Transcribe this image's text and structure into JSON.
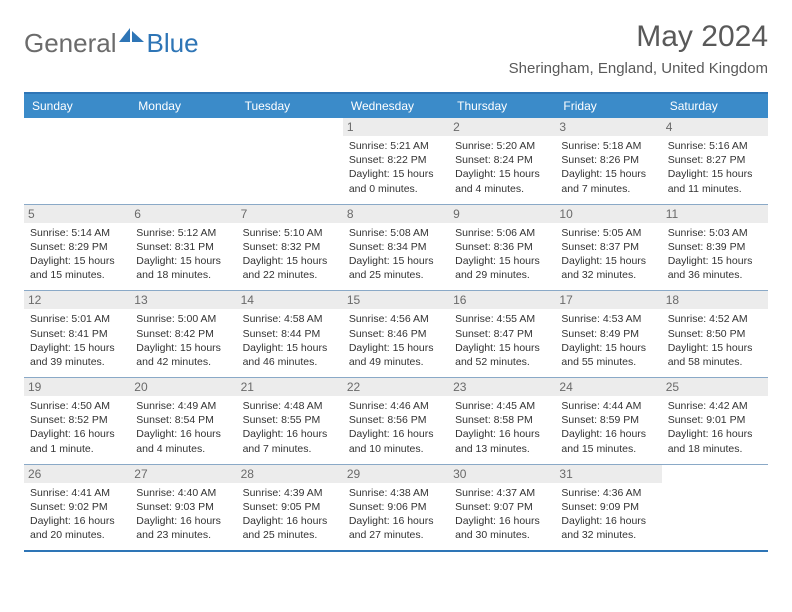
{
  "brand": {
    "word1": "General",
    "word2": "Blue"
  },
  "colors": {
    "accent": "#2e75b6",
    "header_bg": "#3b8bc9",
    "header_text": "#ffffff",
    "daynum_bg": "#ececec",
    "daynum_text": "#6a6a6a",
    "title_text": "#595959",
    "body_text": "#333333",
    "rule": "#8aa9c7"
  },
  "title": "May 2024",
  "location": "Sheringham, England, United Kingdom",
  "day_headers": [
    "Sunday",
    "Monday",
    "Tuesday",
    "Wednesday",
    "Thursday",
    "Friday",
    "Saturday"
  ],
  "weeks": [
    [
      {
        "n": "",
        "sr": "",
        "ss": "",
        "dl": ""
      },
      {
        "n": "",
        "sr": "",
        "ss": "",
        "dl": ""
      },
      {
        "n": "",
        "sr": "",
        "ss": "",
        "dl": ""
      },
      {
        "n": "1",
        "sr": "Sunrise: 5:21 AM",
        "ss": "Sunset: 8:22 PM",
        "dl": "Daylight: 15 hours and 0 minutes."
      },
      {
        "n": "2",
        "sr": "Sunrise: 5:20 AM",
        "ss": "Sunset: 8:24 PM",
        "dl": "Daylight: 15 hours and 4 minutes."
      },
      {
        "n": "3",
        "sr": "Sunrise: 5:18 AM",
        "ss": "Sunset: 8:26 PM",
        "dl": "Daylight: 15 hours and 7 minutes."
      },
      {
        "n": "4",
        "sr": "Sunrise: 5:16 AM",
        "ss": "Sunset: 8:27 PM",
        "dl": "Daylight: 15 hours and 11 minutes."
      }
    ],
    [
      {
        "n": "5",
        "sr": "Sunrise: 5:14 AM",
        "ss": "Sunset: 8:29 PM",
        "dl": "Daylight: 15 hours and 15 minutes."
      },
      {
        "n": "6",
        "sr": "Sunrise: 5:12 AM",
        "ss": "Sunset: 8:31 PM",
        "dl": "Daylight: 15 hours and 18 minutes."
      },
      {
        "n": "7",
        "sr": "Sunrise: 5:10 AM",
        "ss": "Sunset: 8:32 PM",
        "dl": "Daylight: 15 hours and 22 minutes."
      },
      {
        "n": "8",
        "sr": "Sunrise: 5:08 AM",
        "ss": "Sunset: 8:34 PM",
        "dl": "Daylight: 15 hours and 25 minutes."
      },
      {
        "n": "9",
        "sr": "Sunrise: 5:06 AM",
        "ss": "Sunset: 8:36 PM",
        "dl": "Daylight: 15 hours and 29 minutes."
      },
      {
        "n": "10",
        "sr": "Sunrise: 5:05 AM",
        "ss": "Sunset: 8:37 PM",
        "dl": "Daylight: 15 hours and 32 minutes."
      },
      {
        "n": "11",
        "sr": "Sunrise: 5:03 AM",
        "ss": "Sunset: 8:39 PM",
        "dl": "Daylight: 15 hours and 36 minutes."
      }
    ],
    [
      {
        "n": "12",
        "sr": "Sunrise: 5:01 AM",
        "ss": "Sunset: 8:41 PM",
        "dl": "Daylight: 15 hours and 39 minutes."
      },
      {
        "n": "13",
        "sr": "Sunrise: 5:00 AM",
        "ss": "Sunset: 8:42 PM",
        "dl": "Daylight: 15 hours and 42 minutes."
      },
      {
        "n": "14",
        "sr": "Sunrise: 4:58 AM",
        "ss": "Sunset: 8:44 PM",
        "dl": "Daylight: 15 hours and 46 minutes."
      },
      {
        "n": "15",
        "sr": "Sunrise: 4:56 AM",
        "ss": "Sunset: 8:46 PM",
        "dl": "Daylight: 15 hours and 49 minutes."
      },
      {
        "n": "16",
        "sr": "Sunrise: 4:55 AM",
        "ss": "Sunset: 8:47 PM",
        "dl": "Daylight: 15 hours and 52 minutes."
      },
      {
        "n": "17",
        "sr": "Sunrise: 4:53 AM",
        "ss": "Sunset: 8:49 PM",
        "dl": "Daylight: 15 hours and 55 minutes."
      },
      {
        "n": "18",
        "sr": "Sunrise: 4:52 AM",
        "ss": "Sunset: 8:50 PM",
        "dl": "Daylight: 15 hours and 58 minutes."
      }
    ],
    [
      {
        "n": "19",
        "sr": "Sunrise: 4:50 AM",
        "ss": "Sunset: 8:52 PM",
        "dl": "Daylight: 16 hours and 1 minute."
      },
      {
        "n": "20",
        "sr": "Sunrise: 4:49 AM",
        "ss": "Sunset: 8:54 PM",
        "dl": "Daylight: 16 hours and 4 minutes."
      },
      {
        "n": "21",
        "sr": "Sunrise: 4:48 AM",
        "ss": "Sunset: 8:55 PM",
        "dl": "Daylight: 16 hours and 7 minutes."
      },
      {
        "n": "22",
        "sr": "Sunrise: 4:46 AM",
        "ss": "Sunset: 8:56 PM",
        "dl": "Daylight: 16 hours and 10 minutes."
      },
      {
        "n": "23",
        "sr": "Sunrise: 4:45 AM",
        "ss": "Sunset: 8:58 PM",
        "dl": "Daylight: 16 hours and 13 minutes."
      },
      {
        "n": "24",
        "sr": "Sunrise: 4:44 AM",
        "ss": "Sunset: 8:59 PM",
        "dl": "Daylight: 16 hours and 15 minutes."
      },
      {
        "n": "25",
        "sr": "Sunrise: 4:42 AM",
        "ss": "Sunset: 9:01 PM",
        "dl": "Daylight: 16 hours and 18 minutes."
      }
    ],
    [
      {
        "n": "26",
        "sr": "Sunrise: 4:41 AM",
        "ss": "Sunset: 9:02 PM",
        "dl": "Daylight: 16 hours and 20 minutes."
      },
      {
        "n": "27",
        "sr": "Sunrise: 4:40 AM",
        "ss": "Sunset: 9:03 PM",
        "dl": "Daylight: 16 hours and 23 minutes."
      },
      {
        "n": "28",
        "sr": "Sunrise: 4:39 AM",
        "ss": "Sunset: 9:05 PM",
        "dl": "Daylight: 16 hours and 25 minutes."
      },
      {
        "n": "29",
        "sr": "Sunrise: 4:38 AM",
        "ss": "Sunset: 9:06 PM",
        "dl": "Daylight: 16 hours and 27 minutes."
      },
      {
        "n": "30",
        "sr": "Sunrise: 4:37 AM",
        "ss": "Sunset: 9:07 PM",
        "dl": "Daylight: 16 hours and 30 minutes."
      },
      {
        "n": "31",
        "sr": "Sunrise: 4:36 AM",
        "ss": "Sunset: 9:09 PM",
        "dl": "Daylight: 16 hours and 32 minutes."
      },
      {
        "n": "",
        "sr": "",
        "ss": "",
        "dl": ""
      }
    ]
  ]
}
